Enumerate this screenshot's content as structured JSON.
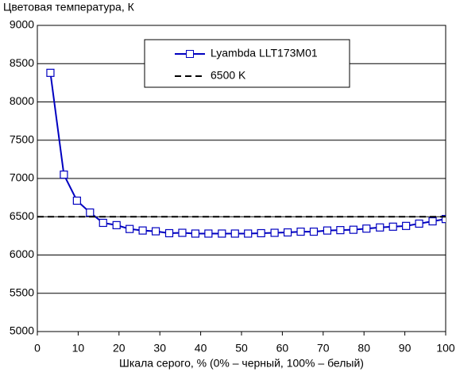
{
  "chart_data": {
    "type": "line",
    "ylabel": "Цветовая температура, К",
    "xlabel": "Шкала серого, % (0% – черный, 100% – белый)",
    "x": [
      3.2,
      6.5,
      9.7,
      12.9,
      16.1,
      19.4,
      22.6,
      25.8,
      29.0,
      32.3,
      35.5,
      38.7,
      41.9,
      45.2,
      48.4,
      51.6,
      54.8,
      58.1,
      61.3,
      64.5,
      67.7,
      71.0,
      74.2,
      77.4,
      80.6,
      83.9,
      87.1,
      90.3,
      93.5,
      96.8,
      100
    ],
    "series": [
      {
        "name": "Lyambda LLT173M01",
        "color": "#0000c0",
        "values": [
          8380,
          7050,
          6710,
          6555,
          6420,
          6390,
          6340,
          6320,
          6310,
          6285,
          6290,
          6280,
          6280,
          6280,
          6280,
          6280,
          6285,
          6290,
          6295,
          6305,
          6305,
          6320,
          6325,
          6330,
          6345,
          6360,
          6370,
          6380,
          6410,
          6440,
          6470
        ]
      },
      {
        "name": "6500 K",
        "color": "#000000",
        "reference": 6500,
        "dashed": true
      }
    ],
    "xlim": [
      0,
      100
    ],
    "xticks": [
      0,
      10,
      20,
      30,
      40,
      50,
      60,
      70,
      80,
      90,
      100
    ],
    "ylim": [
      5000,
      9000
    ],
    "yticks": [
      5000,
      5500,
      6000,
      6500,
      7000,
      7500,
      8000,
      8500,
      9000
    ],
    "grid": true
  }
}
